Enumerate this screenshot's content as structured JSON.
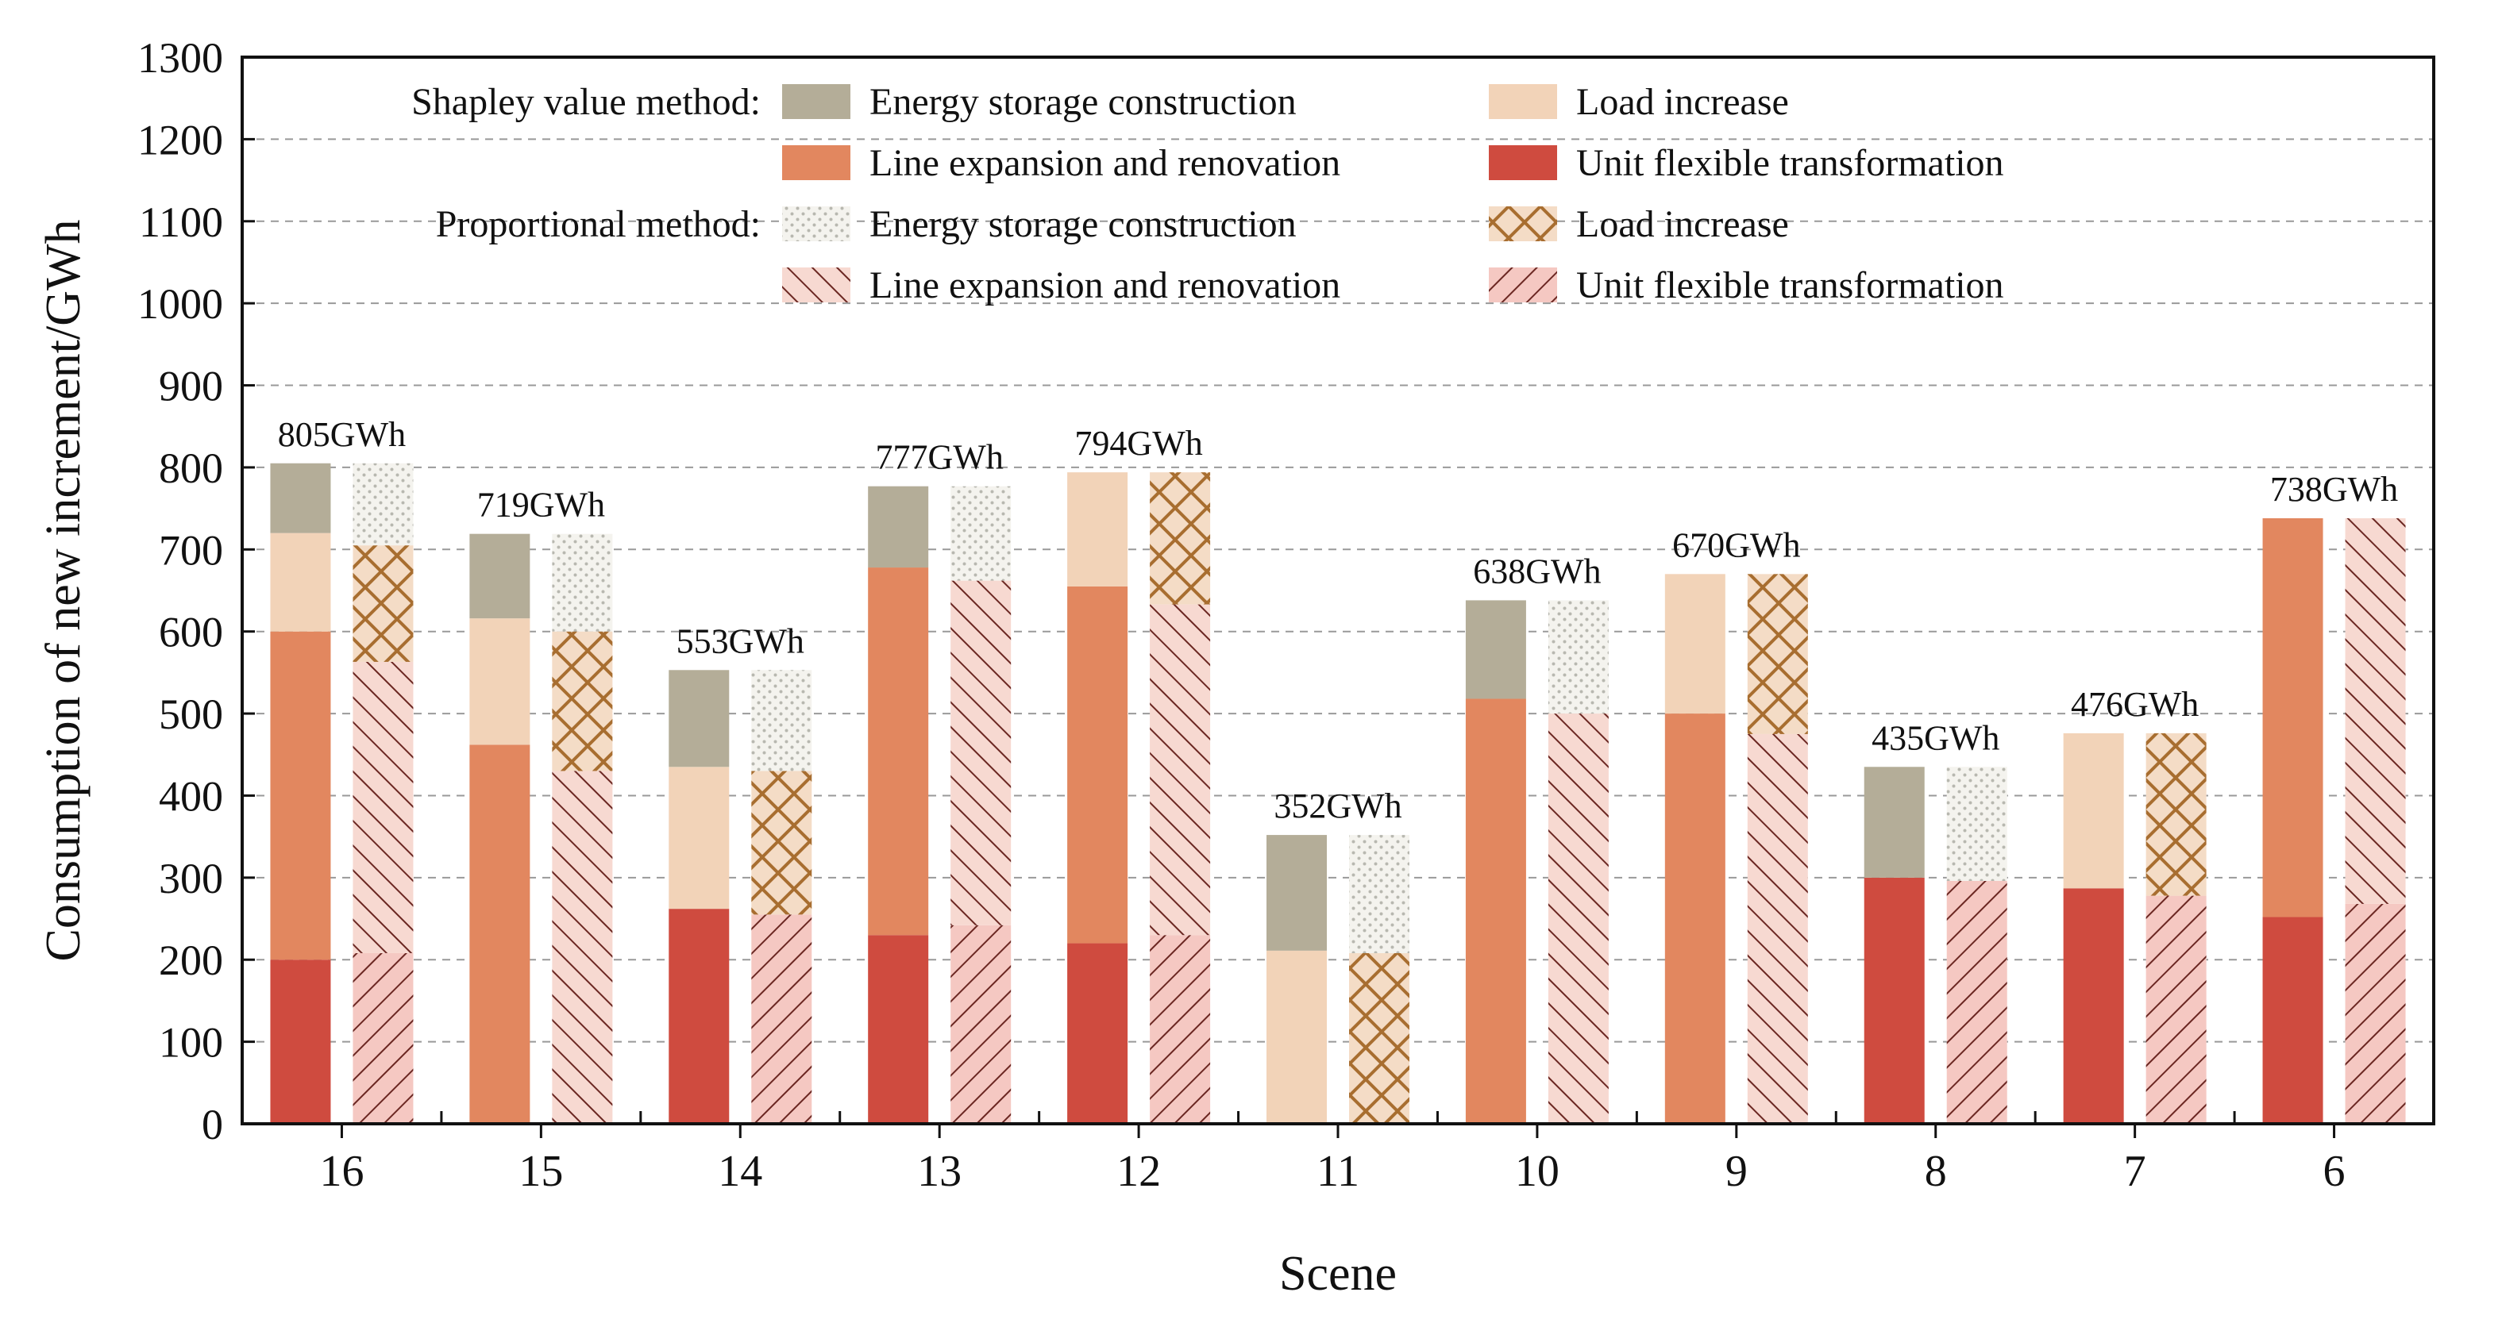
{
  "chart_data": {
    "type": "bar",
    "subtype": "grouped-stacked",
    "xlabel": "Scene",
    "ylabel": "Consumption of new increment/GWh",
    "ylim": [
      0,
      1300
    ],
    "yticks": [
      0,
      100,
      200,
      300,
      400,
      500,
      600,
      700,
      800,
      900,
      1000,
      1100,
      1200,
      1300
    ],
    "grid": "horizontal-dashed",
    "categories": [
      "16",
      "15",
      "14",
      "13",
      "12",
      "11",
      "10",
      "9",
      "8",
      "7",
      "6"
    ],
    "totals_label": [
      "805GWh",
      "719GWh",
      "553GWh",
      "777GWh",
      "794GWh",
      "352GWh",
      "638GWh",
      "670GWh",
      "435GWh",
      "476GWh",
      "738GWh"
    ],
    "components": [
      "Unit flexible transformation",
      "Line expansion and renovation",
      "Load increase",
      "Energy storage construction"
    ],
    "methods": [
      {
        "name": "Shapley value method",
        "series": [
          {
            "name": "Unit flexible transformation",
            "values": [
              200,
              0,
              262,
              230,
              220,
              0,
              0,
              0,
              300,
              287,
              252
            ]
          },
          {
            "name": "Line expansion and renovation",
            "values": [
              400,
              462,
              0,
              448,
              435,
              0,
              518,
              500,
              0,
              0,
              486
            ]
          },
          {
            "name": "Load increase",
            "values": [
              120,
              154,
              173,
              0,
              139,
              211,
              0,
              170,
              0,
              189,
              0
            ]
          },
          {
            "name": "Energy storage construction",
            "values": [
              85,
              103,
              118,
              99,
              0,
              141,
              120,
              0,
              135,
              0,
              0
            ]
          }
        ]
      },
      {
        "name": "Proportional method",
        "series": [
          {
            "name": "Unit flexible transformation",
            "values": [
              208,
              0,
              255,
              242,
              230,
              0,
              0,
              0,
              296,
              278,
              268
            ]
          },
          {
            "name": "Line expansion and renovation",
            "values": [
              355,
              430,
              0,
              420,
              403,
              0,
              500,
              475,
              0,
              0,
              470
            ]
          },
          {
            "name": "Load increase",
            "values": [
              142,
              170,
              175,
              0,
              161,
              208,
              0,
              195,
              0,
              198,
              0
            ]
          },
          {
            "name": "Energy storage construction",
            "values": [
              100,
              119,
              123,
              115,
              0,
              144,
              138,
              0,
              139,
              0,
              0
            ]
          }
        ]
      }
    ],
    "legend": {
      "placement": "top",
      "groups": [
        {
          "method": "Shapley value method:",
          "entries": [
            {
              "label": "Energy storage construction",
              "swatch": "storage-solid"
            },
            {
              "label": "Load increase",
              "swatch": "load-solid"
            },
            {
              "label": "Line expansion and renovation",
              "swatch": "line-solid"
            },
            {
              "label": "Unit flexible transformation",
              "swatch": "unit-solid"
            }
          ]
        },
        {
          "method": "Proportional method:",
          "entries": [
            {
              "label": "Energy storage construction",
              "swatch": "storage-pattern"
            },
            {
              "label": "Load increase",
              "swatch": "load-pattern"
            },
            {
              "label": "Line expansion and renovation",
              "swatch": "line-pattern"
            },
            {
              "label": "Unit flexible transformation",
              "swatch": "unit-pattern"
            }
          ]
        }
      ]
    },
    "colors": {
      "unit": "#cf4b3f",
      "line": "#e2875f",
      "load": "#f2d3b8",
      "storage": "#b4ad98",
      "pattern_line_bg": "#f7d9d1",
      "pattern_unit_bg": "#f5c8c2",
      "pattern_load_stroke": "#a86e30",
      "pattern_dark_stroke": "#6b2722",
      "pattern_dots": "#b8b8b0"
    }
  }
}
